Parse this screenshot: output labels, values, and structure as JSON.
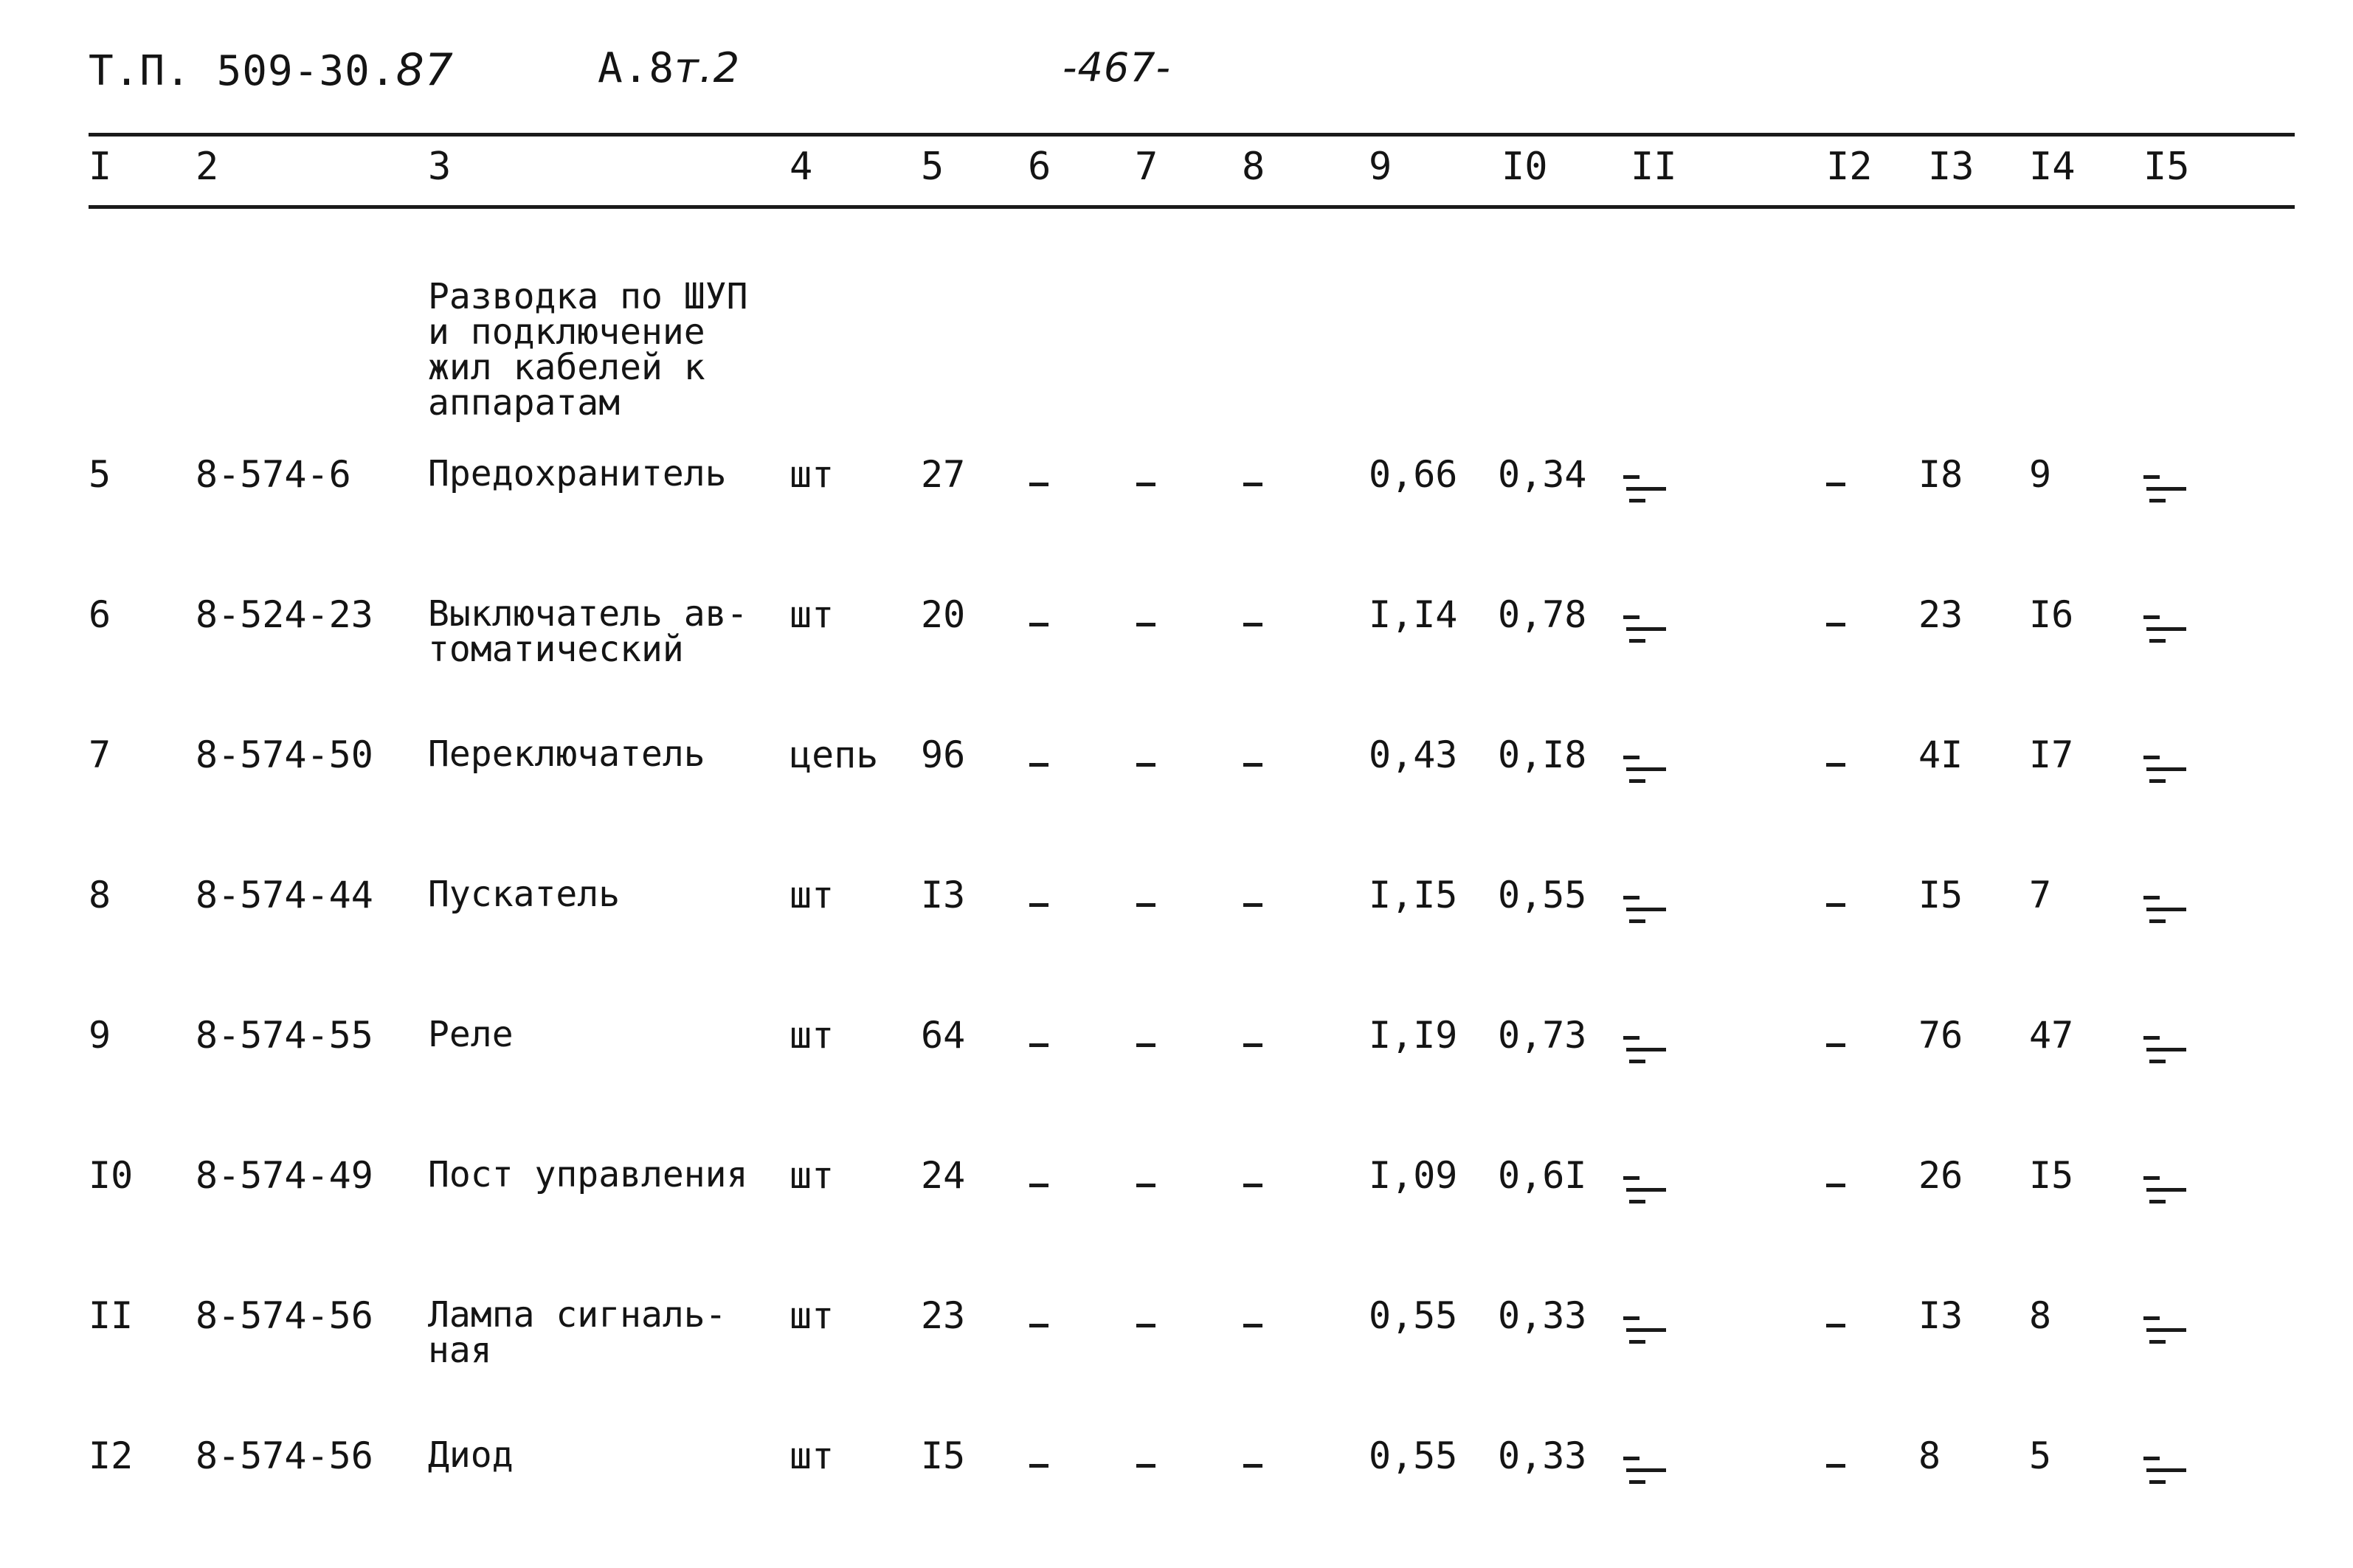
{
  "header": {
    "code": "Т.П. 509-30.",
    "code_suffix": "87",
    "album": "А.8",
    "album_suffix": "т.2",
    "page": "-467-"
  },
  "columns": [
    "I",
    "2",
    "3",
    "4",
    "5",
    "6",
    "7",
    "8",
    "9",
    "I0",
    "II",
    "I2",
    "I3",
    "I4",
    "I5"
  ],
  "section_title": "Разводка по ШУП\nи подключение\nжил кабелей к\nаппаратам",
  "rows": [
    {
      "num": "5",
      "code": "8-574-6",
      "name": "Предохранитель",
      "unit": "шт",
      "qty": "27",
      "c9": "0,66",
      "c10": "0,34",
      "c12": "-",
      "c13": "I8",
      "c14": "9"
    },
    {
      "num": "6",
      "code": "8-524-23",
      "name": "Выключатель ав-\nтоматический",
      "unit": "шт",
      "qty": "20",
      "c9": "I,I4",
      "c10": "0,78",
      "c12": "-",
      "c13": "23",
      "c14": "I6"
    },
    {
      "num": "7",
      "code": "8-574-50",
      "name": "Переключатель",
      "unit": "цепь",
      "qty": "96",
      "c9": "0,43",
      "c10": "0,I8",
      "c12": "-",
      "c13": "4I",
      "c14": "I7"
    },
    {
      "num": "8",
      "code": "8-574-44",
      "name": "Пускатель",
      "unit": "шт",
      "qty": "I3",
      "c9": "I,I5",
      "c10": "0,55",
      "c12": "-",
      "c13": "I5",
      "c14": "7"
    },
    {
      "num": "9",
      "code": "8-574-55",
      "name": "Реле",
      "unit": "шт",
      "qty": "64",
      "c9": "I,I9",
      "c10": "0,73",
      "c12": "-",
      "c13": "76",
      "c14": "47"
    },
    {
      "num": "I0",
      "code": "8-574-49",
      "name": "Пост управления",
      "unit": "шт",
      "qty": "24",
      "c9": "I,09",
      "c10": "0,6I",
      "c12": "-",
      "c13": "26",
      "c14": "I5"
    },
    {
      "num": "II",
      "code": "8-574-56",
      "name": "Лампа сигналь-\nная",
      "unit": "шт",
      "qty": "23",
      "c9": "0,55",
      "c10": "0,33",
      "c12": "-",
      "c13": "I3",
      "c14": "8"
    },
    {
      "num": "I2",
      "code": "8-574-56",
      "name": "Диод",
      "unit": "шт",
      "qty": "I5",
      "c9": "0,55",
      "c10": "0,33",
      "c12": "-",
      "c13": "8",
      "c14": "5"
    }
  ]
}
